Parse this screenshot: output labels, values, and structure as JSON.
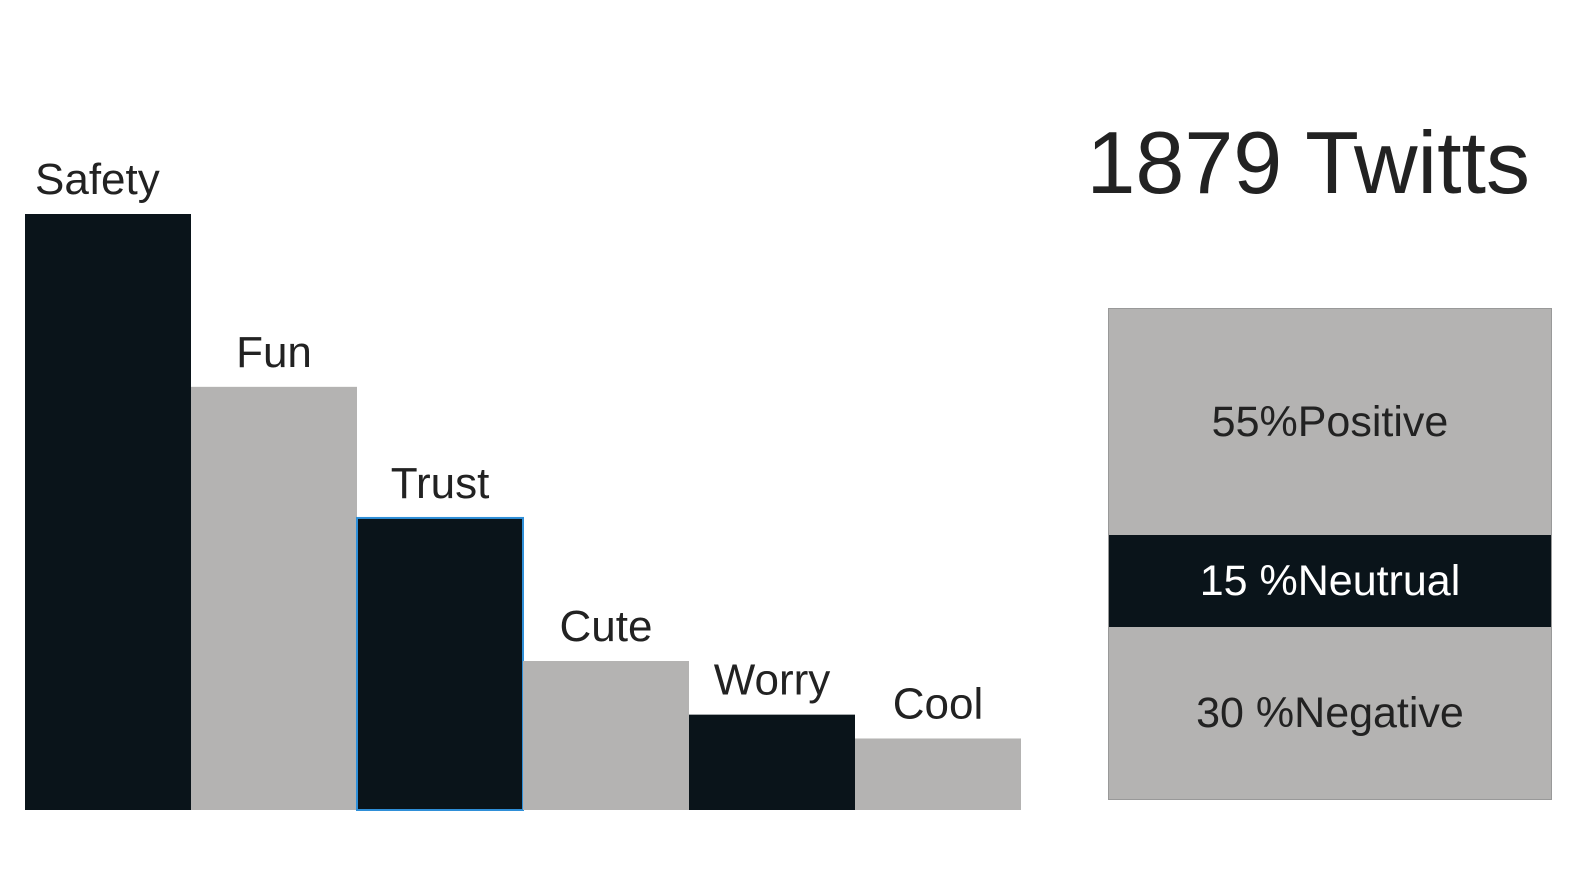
{
  "chart_data": {
    "type": "bar",
    "categories": [
      "Safety",
      "Fun",
      "Trust",
      "Cute",
      "Worry",
      "Cool"
    ],
    "values": [
      100,
      71,
      49,
      25,
      16,
      12
    ],
    "ylim": [
      0,
      100
    ],
    "grid": false,
    "legend": "none",
    "colors": [
      "#0a141a",
      "#b4b3b2",
      "#0a141a",
      "#b4b3b2",
      "#0a141a",
      "#b4b3b2"
    ],
    "highlight_index": 2,
    "highlight_color": "#2f8fd8"
  },
  "summary": {
    "total": "1879 Twitts",
    "sentiment": [
      {
        "label": "55%Positive",
        "value": 55
      },
      {
        "label": "15 %Neutrual",
        "value": 15
      },
      {
        "label": "30 %Negative",
        "value": 30
      }
    ]
  }
}
